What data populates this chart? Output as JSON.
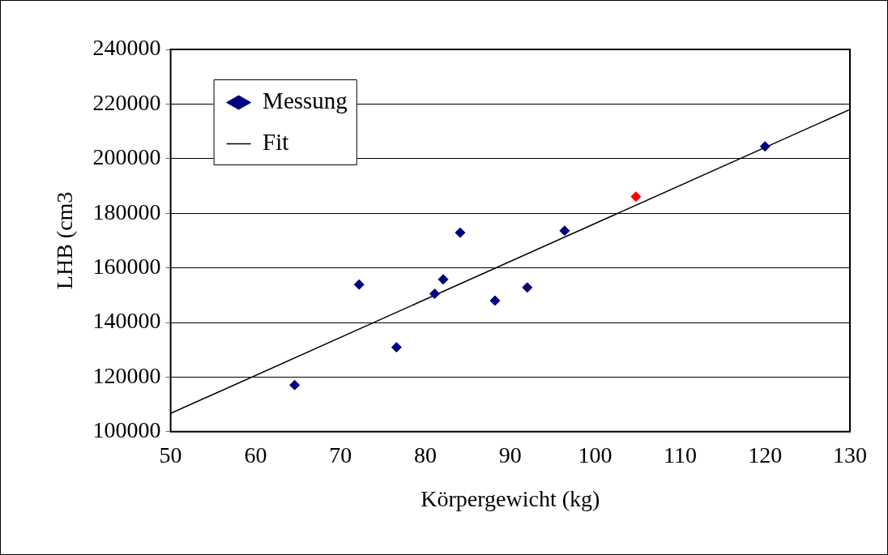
{
  "chart_data": {
    "type": "scatter",
    "xlabel": "Körpergewicht (kg)",
    "ylabel": "LHB (cm3",
    "xlim": [
      50,
      130
    ],
    "xticks": [
      50,
      60,
      70,
      80,
      90,
      100,
      110,
      120,
      130
    ],
    "ylim": [
      100000,
      240000
    ],
    "yticks": [
      100000,
      120000,
      140000,
      160000,
      180000,
      200000,
      220000,
      240000
    ],
    "grid": "y",
    "legend": "top left",
    "marker": "diamond",
    "series": [
      {
        "name": "Messung",
        "color": "#000080",
        "x": [
          64.6,
          72.2,
          76.6,
          81.1,
          82.1,
          84.1,
          88.2,
          92.0,
          96.4,
          120.0
        ],
        "values": [
          117100,
          153900,
          130900,
          150500,
          155800,
          172900,
          148000,
          152800,
          173600,
          204500
        ]
      },
      {
        "color": "#ff0000",
        "x": [
          104.8
        ],
        "values": [
          186100
        ]
      },
      {
        "name": "Fit",
        "type": "line",
        "color": "#000000",
        "x": [
          50,
          130
        ],
        "values": [
          106700,
          218000
        ],
        "marker": "none",
        "line_style": "solid"
      }
    ]
  }
}
